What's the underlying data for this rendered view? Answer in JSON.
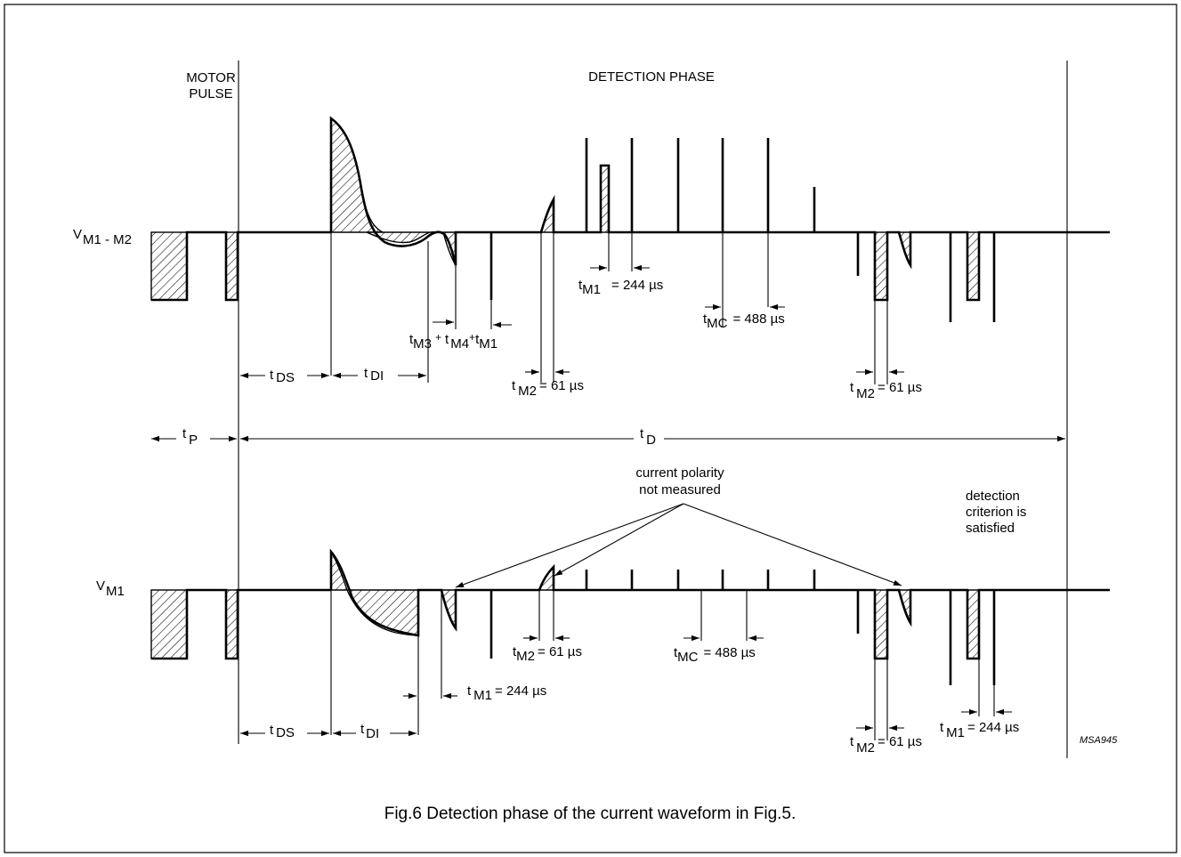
{
  "figure_code": "MSA945",
  "caption": "Fig.6  Detection phase of the current waveform in Fig.5.",
  "labels": {
    "motor_pulse_line1": "MOTOR",
    "motor_pulse_line2": "PULSE",
    "detection_phase": "DETECTION PHASE",
    "v_top_main": "V",
    "v_top_sub": "M1 - M2",
    "v_bottom_main": "V",
    "v_bottom_sub": "M1",
    "polarity_line1": "current polarity",
    "polarity_line2": "not measured",
    "criterion_line1": "detection",
    "criterion_line2": "criterion is",
    "criterion_line3": "satisfied"
  },
  "timing": {
    "t": "t",
    "ds": "DS",
    "di": "DI",
    "p": "P",
    "d": "D",
    "m1": "M1",
    "m2": "M2",
    "m3": "M3",
    "m4": "M4",
    "mc": "MC",
    "plus": "+",
    "val_244": "= 244 µs",
    "val_61": "= 61 µs",
    "val_488": "= 488 µs"
  }
}
